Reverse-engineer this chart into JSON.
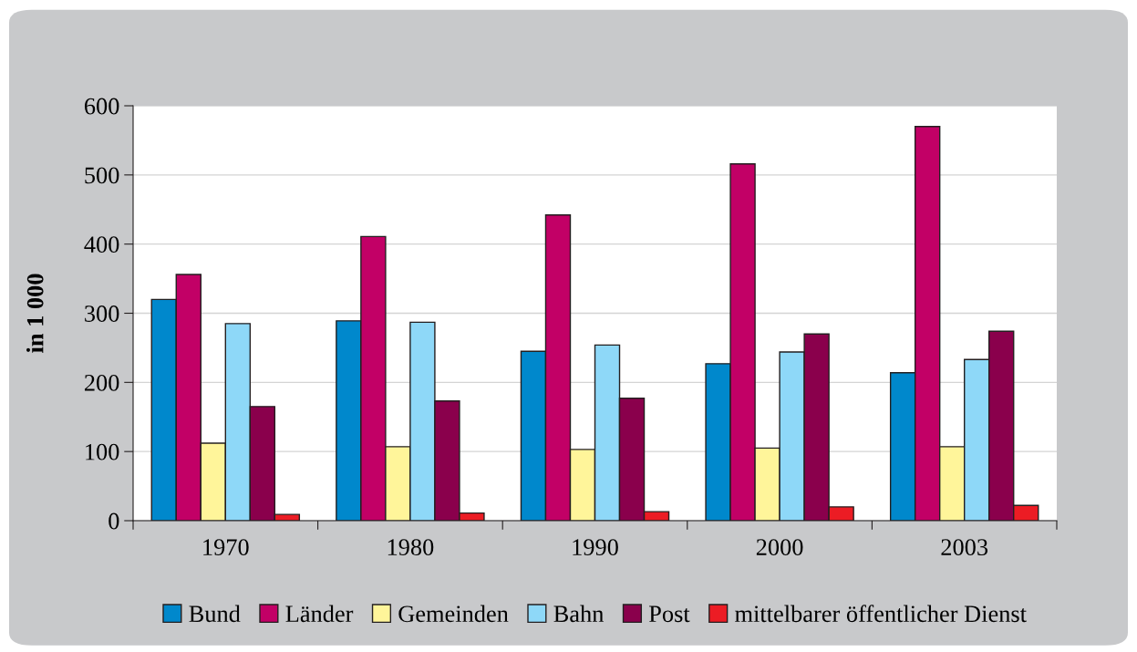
{
  "chart_data": {
    "type": "bar",
    "ylabel": "in 1 000",
    "categories": [
      "1970",
      "1980",
      "1990",
      "2000",
      "2003"
    ],
    "series": [
      {
        "name": "Bund",
        "color": "#0088cc",
        "values": [
          320,
          289,
          245,
          227,
          214
        ]
      },
      {
        "name": "Länder",
        "color": "#c20066",
        "values": [
          356,
          411,
          442,
          516,
          570
        ]
      },
      {
        "name": "Gemeinden",
        "color": "#fff59a",
        "values": [
          112,
          107,
          103,
          105,
          107
        ]
      },
      {
        "name": "Bahn",
        "color": "#8ed8f8",
        "values": [
          285,
          287,
          254,
          244,
          233
        ]
      },
      {
        "name": "Post",
        "color": "#8a004c",
        "values": [
          165,
          173,
          177,
          270,
          274
        ]
      },
      {
        "name": "mittelbarer öffentlicher Dienst",
        "color": "#ec1c24",
        "values": [
          9,
          11,
          13,
          20,
          22
        ]
      }
    ],
    "ylim": [
      0,
      600
    ],
    "yticks": [
      0,
      100,
      200,
      300,
      400,
      500,
      600
    ],
    "grid": "y",
    "legend": "bottom"
  }
}
